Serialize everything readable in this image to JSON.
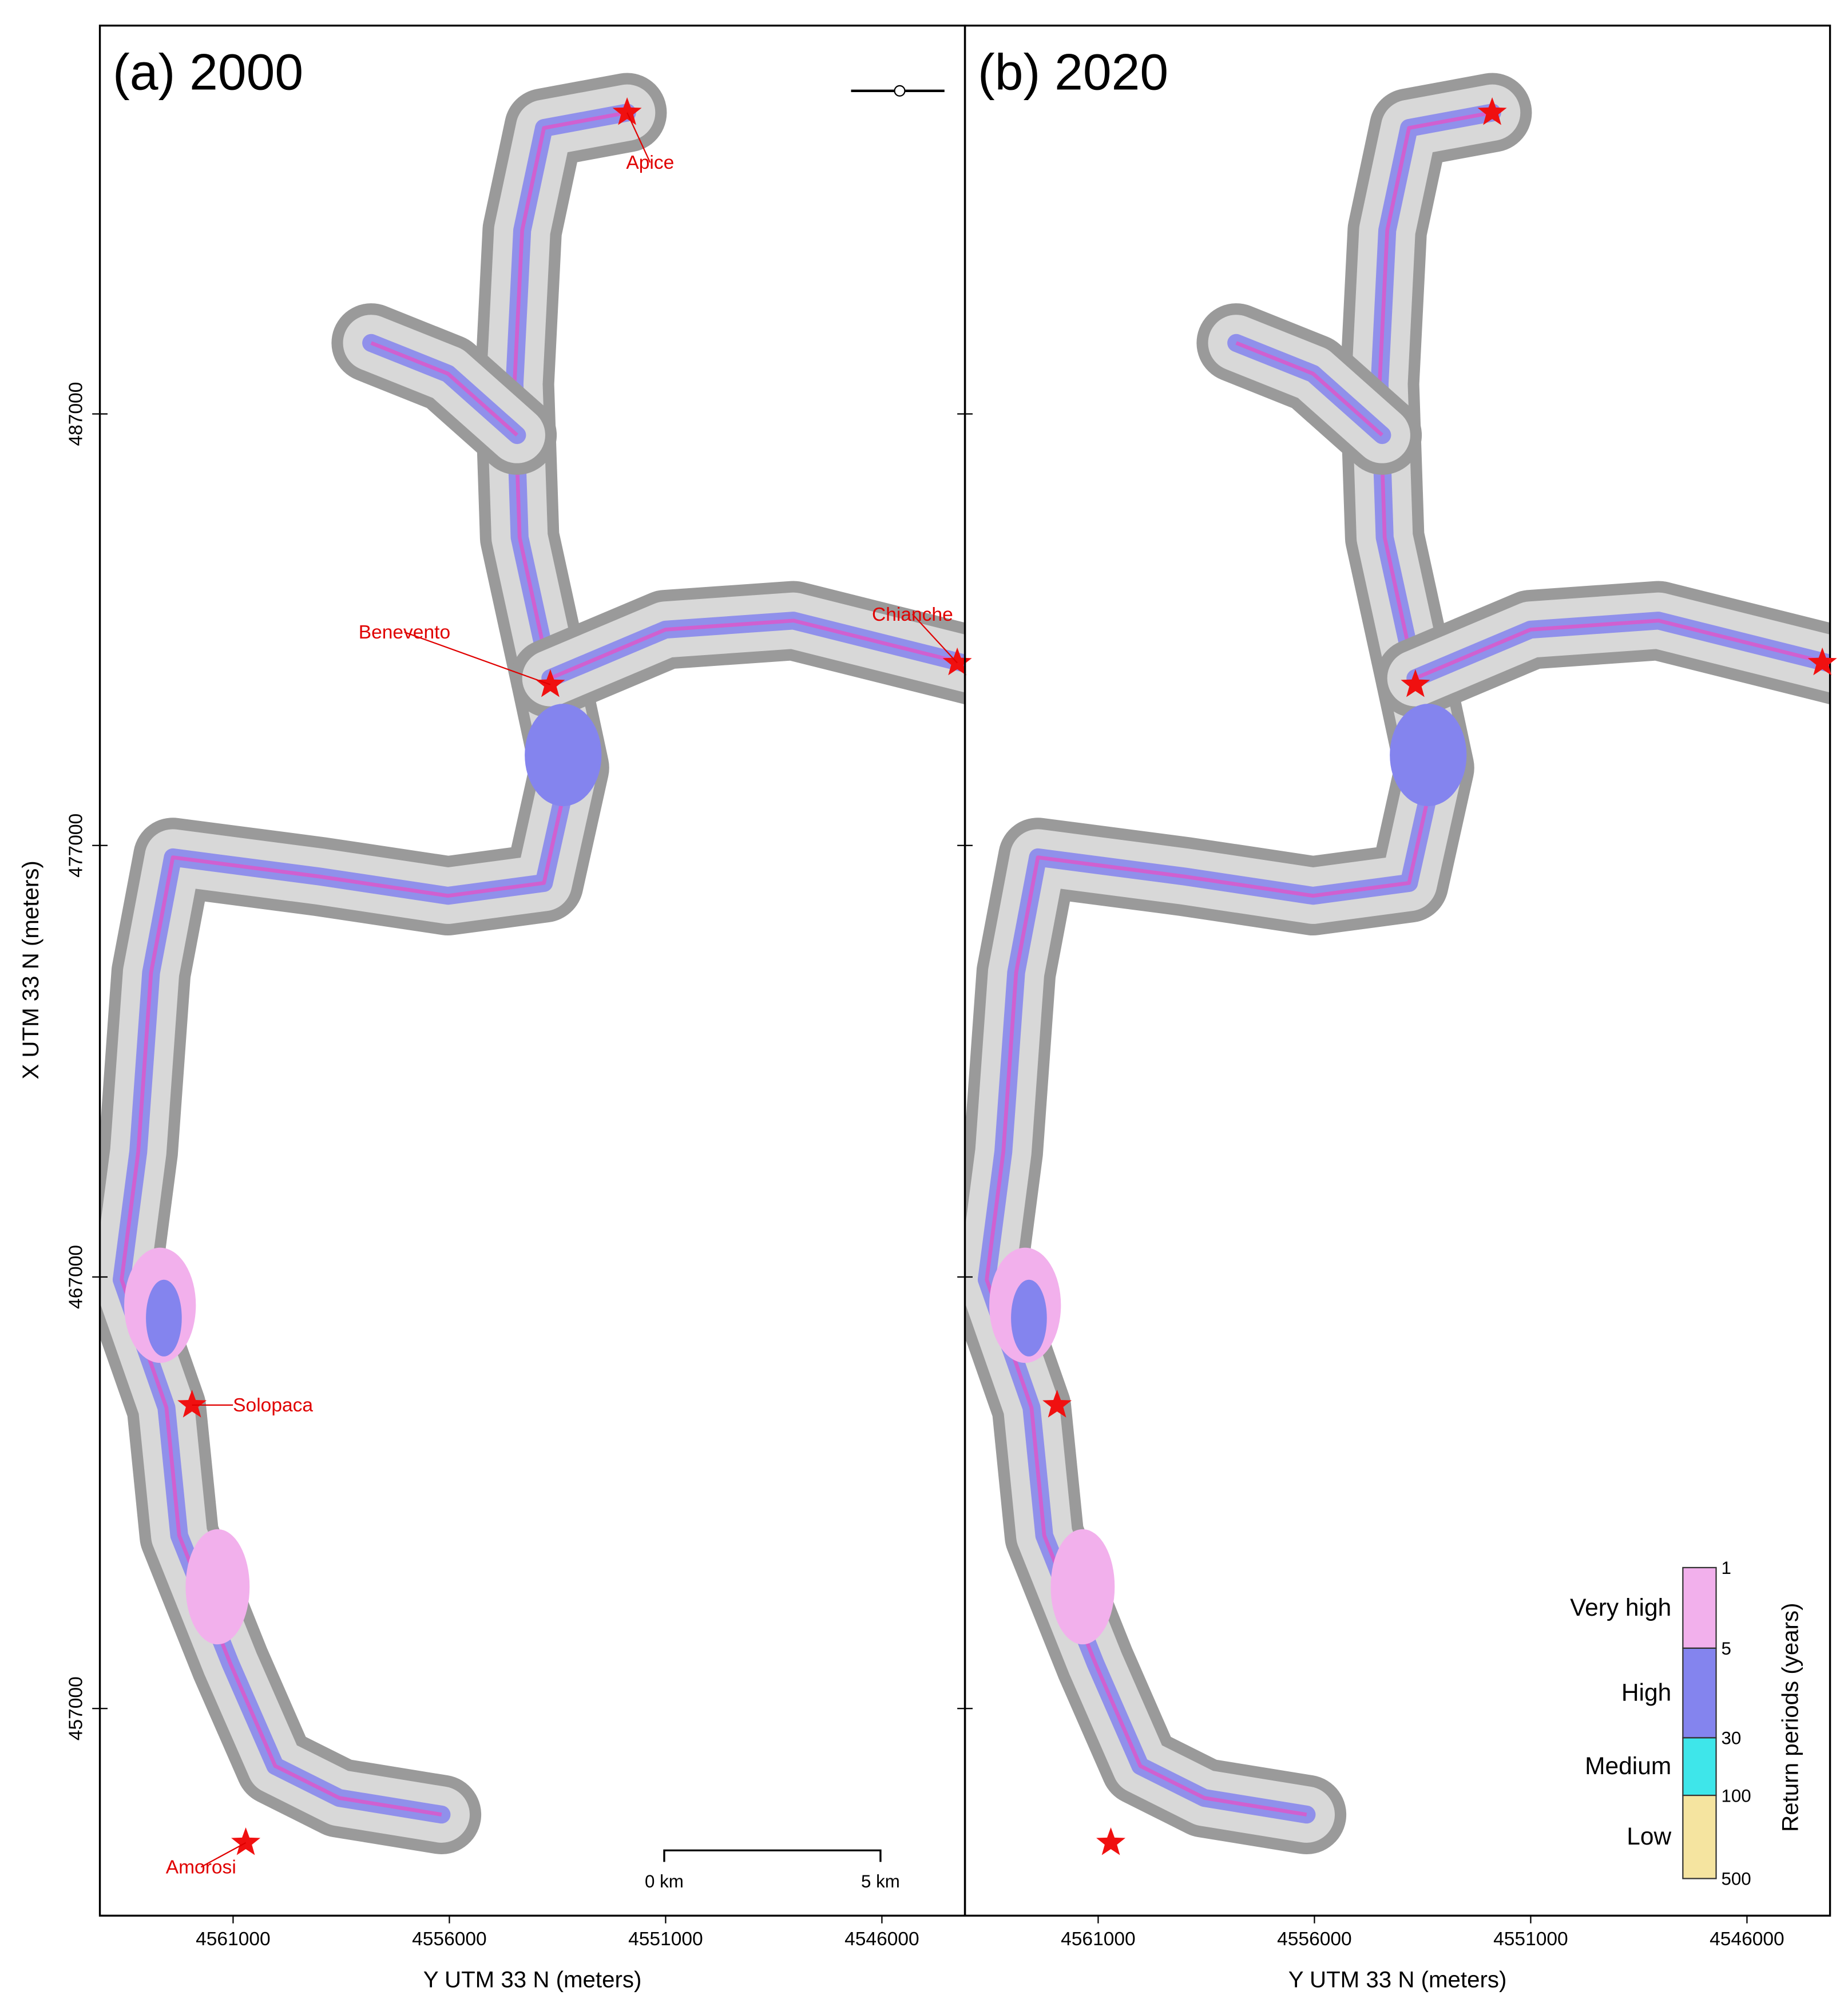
{
  "panels": [
    {
      "title": "(a) 2000",
      "places": [
        "Apice",
        "Chianche",
        "Benevento",
        "Solopaca",
        "Amorosi"
      ]
    },
    {
      "title": "(b) 2020"
    }
  ],
  "x_axis": {
    "label": "Y UTM 33 N (meters)",
    "lim": [
      4564080,
      4544080
    ],
    "ticks": [
      4561000,
      4556000,
      4551000,
      4546000
    ]
  },
  "y_axis": {
    "label": "X UTM 33 N (meters)",
    "lim": [
      452200,
      496000
    ],
    "ticks": [
      457000,
      467000,
      477000,
      487000
    ]
  },
  "legend": {
    "title": "Return periods (years)",
    "classes": [
      {
        "name": "Very high",
        "color": "#f2b0ec"
      },
      {
        "name": "High",
        "color": "#8484ee"
      },
      {
        "name": "Medium",
        "color": "#3ee6ea"
      },
      {
        "name": "Low",
        "color": "#f5e4a0"
      }
    ],
    "bounds": [
      1,
      5,
      30,
      100,
      500
    ]
  },
  "scale_bar": {
    "labels": [
      "0 km",
      "5 km"
    ]
  }
}
